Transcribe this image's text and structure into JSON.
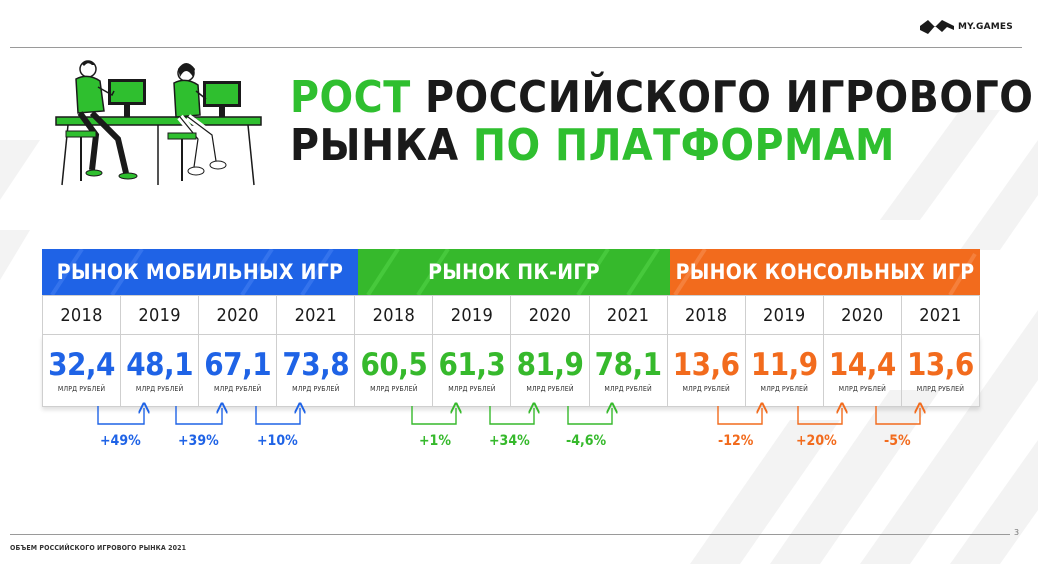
{
  "title": {
    "line1_accent": "РОСТ",
    "line1_rest": "РОССИЙСКОГО ИГРОВОГО",
    "line2_rest": "РЫНКА",
    "line2_accent": "ПО ПЛАТФОРМАМ"
  },
  "logo": {
    "text": "MY.GAMES"
  },
  "footer": {
    "text": "ОБЪЕМ РОССИЙСКОГО ИГРОВОГО РЫНКА 2021",
    "page_number": "3"
  },
  "colors": {
    "mobile": "#1f63e6",
    "pc": "#36b92c",
    "console": "#f26b1d",
    "title_accent": "#2fbf2f"
  },
  "markets": [
    {
      "name": "РЫНОК МОБИЛЬНЫХ ИГР",
      "cells": [
        {
          "year": "2018",
          "value": "32,4",
          "unit": "МЛРД РУБЛЕЙ"
        },
        {
          "year": "2019",
          "value": "48,1",
          "unit": "МЛРД РУБЛЕЙ"
        },
        {
          "year": "2020",
          "value": "67,1",
          "unit": "МЛРД РУБЛЕЙ"
        },
        {
          "year": "2021",
          "value": "73,8",
          "unit": "МЛРД РУБЛЕЙ"
        }
      ],
      "growth": [
        "+49%",
        "+39%",
        "+10%"
      ]
    },
    {
      "name": "РЫНОК ПК-ИГР",
      "cells": [
        {
          "year": "2018",
          "value": "60,5",
          "unit": "МЛРД РУБЛЕЙ"
        },
        {
          "year": "2019",
          "value": "61,3",
          "unit": "МЛРД РУБЛЕЙ"
        },
        {
          "year": "2020",
          "value": "81,9",
          "unit": "МЛРД РУБЛЕЙ"
        },
        {
          "year": "2021",
          "value": "78,1",
          "unit": "МЛРД РУБЛЕЙ"
        }
      ],
      "growth": [
        "+1%",
        "+34%",
        "-4,6%"
      ]
    },
    {
      "name": "РЫНОК КОНСОЛЬНЫХ ИГР",
      "cells": [
        {
          "year": "2018",
          "value": "13,6",
          "unit": "МЛРД РУБЛЕЙ"
        },
        {
          "year": "2019",
          "value": "11,9",
          "unit": "МЛРД РУБЛЕЙ"
        },
        {
          "year": "2020",
          "value": "14,4",
          "unit": "МЛРД РУБЛЕЙ"
        },
        {
          "year": "2021",
          "value": "13,6",
          "unit": "МЛРД РУБЛЕЙ"
        }
      ],
      "growth": [
        "-12%",
        "+20%",
        "-5%"
      ]
    }
  ]
}
